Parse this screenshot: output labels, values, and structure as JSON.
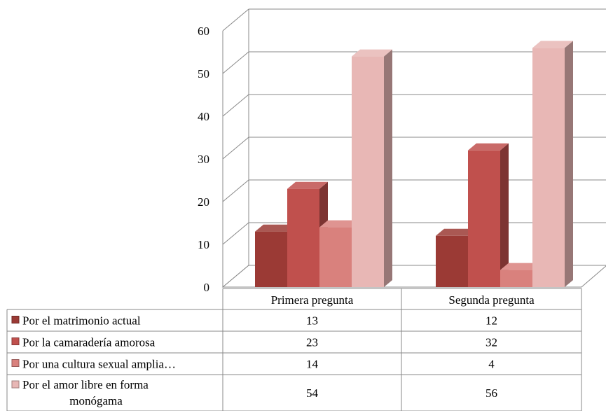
{
  "chart_data": {
    "type": "bar",
    "title": "",
    "xlabel": "",
    "ylabel": "",
    "ylim": [
      0,
      60
    ],
    "yticks": [
      "0",
      "10",
      "20",
      "30",
      "40",
      "50",
      "60"
    ],
    "categories": [
      "Primera pregunta",
      "Segunda pregunta"
    ],
    "grid": true,
    "data_table": true,
    "series": [
      {
        "name": "Por el matrimonio actual",
        "label_lines": [
          "Por el matrimonio actual"
        ],
        "values": [
          13,
          12
        ],
        "value_labels": [
          "13",
          "12"
        ],
        "color": "#9b3a35"
      },
      {
        "name": "Por la camaradería amorosa",
        "label_lines": [
          "Por la camaradería amorosa"
        ],
        "values": [
          23,
          32
        ],
        "value_labels": [
          "23",
          "32"
        ],
        "color": "#c0504d"
      },
      {
        "name": "Por una cultura sexual amplia…",
        "label_lines": [
          "Por una cultura sexual amplia…"
        ],
        "values": [
          14,
          4
        ],
        "value_labels": [
          "14",
          "4"
        ],
        "color": "#d9817d"
      },
      {
        "name": "Por el amor libre en forma monógama",
        "label_lines": [
          "Por el amor libre en forma",
          "monógama"
        ],
        "values": [
          54,
          56
        ],
        "value_labels": [
          "54",
          "56"
        ],
        "color": "#e8b7b5"
      }
    ]
  }
}
